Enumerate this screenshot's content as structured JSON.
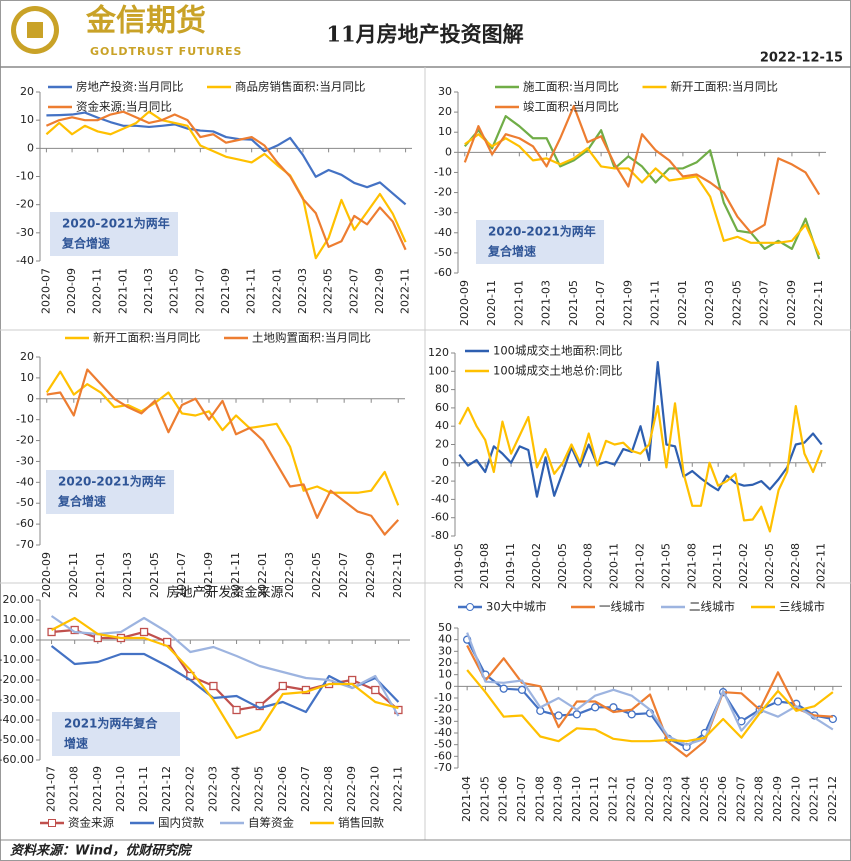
{
  "header": {
    "logo": "金信期货",
    "logo_en": "GOLDTRUST FUTURES",
    "title": "11月房地产投资图解",
    "date": "2022-12-15"
  },
  "footer": "资料来源：Wind，优财研究院",
  "chart_data": [
    {
      "type": "line",
      "legend": "top",
      "annotation": [
        "2020-2021为两年",
        "复合增速"
      ],
      "categories": [
        "2020-07",
        null,
        "2020-09",
        null,
        "2020-11",
        null,
        "2021-01",
        null,
        "2021-03",
        null,
        "2021-05",
        null,
        "2021-07",
        null,
        "2021-09",
        null,
        "2021-11",
        null,
        "2022-01",
        null,
        "2022-03",
        null,
        "2022-05",
        null,
        "2022-07",
        null,
        "2022-09",
        null,
        "2022-11"
      ],
      "ylim": [
        -40,
        20
      ],
      "yticks": [
        -40,
        -30,
        -20,
        -10,
        0,
        10,
        20
      ],
      "series": [
        {
          "name": "房地产投资:当月同比",
          "color": "#4472c4",
          "values": [
            11.7,
            11.8,
            12.0,
            12.7,
            10.9,
            9.3,
            8.0,
            8.0,
            7.6,
            8.0,
            8.5,
            7.0,
            6.3,
            6.0,
            4.0,
            3.3,
            3.1,
            -1,
            1,
            3.7,
            -2.4,
            -10.1,
            -7.7,
            -9.4,
            -12.3,
            -13.8,
            -12.1,
            -16,
            -19.9
          ]
        },
        {
          "name": "商品房销售面积:当月同比",
          "color": "#ffc000",
          "values": [
            5,
            9,
            5,
            8,
            6,
            5,
            7,
            9,
            13,
            10,
            9,
            8,
            1,
            -1,
            -3,
            -4,
            -5,
            -2,
            -6,
            -9.6,
            -17.7,
            -39,
            -31.8,
            -18.3,
            -28.9,
            -22.6,
            -16.2,
            -23.2,
            -33.3
          ]
        },
        {
          "name": "资金来源:当月同比",
          "color": "#ed7d31",
          "values": [
            8,
            10,
            11,
            10,
            10,
            12,
            13,
            11,
            9,
            10,
            12,
            10,
            4,
            5,
            2,
            3,
            4,
            1,
            -5,
            -10,
            -18,
            -23,
            -35,
            -33,
            -24,
            -27,
            -21,
            -26,
            -36
          ]
        }
      ]
    },
    {
      "type": "line",
      "legend": "top",
      "annotation": [
        "2020-2021为两年",
        "复合增速"
      ],
      "categories": [
        "2020-09",
        null,
        "2020-11",
        null,
        "2021-01",
        null,
        "2021-03",
        null,
        "2021-05",
        null,
        "2021-07",
        null,
        "2021-09",
        null,
        "2021-11",
        null,
        "2022-01",
        null,
        "2022-03",
        null,
        "2022-05",
        null,
        "2022-07",
        null,
        "2022-09",
        null,
        "2022-11"
      ],
      "ylim": [
        -60,
        30
      ],
      "yticks": [
        -60,
        -50,
        -40,
        -30,
        -20,
        -10,
        0,
        10,
        20,
        30
      ],
      "series": [
        {
          "name": "施工面积:当月同比",
          "color": "#70ad47",
          "values": [
            3,
            11,
            2,
            18,
            13,
            7,
            7,
            -7,
            -4,
            1,
            11,
            -8,
            -2,
            -7,
            -15,
            -8,
            -8,
            -5,
            1,
            -25,
            -39,
            -40,
            -48,
            -44,
            -48,
            -33,
            -53
          ]
        },
        {
          "name": "新开工面积:当月同比",
          "color": "#ffc000",
          "values": [
            4,
            9,
            3,
            7,
            3,
            -4,
            -3,
            -6,
            -3,
            2,
            -7,
            -8,
            -8,
            -15,
            -8,
            -14,
            -13,
            -12,
            -22,
            -44,
            -42,
            -45,
            -45,
            -45,
            -44,
            -36,
            -51
          ]
        },
        {
          "name": "竣工面积:当月同比",
          "color": "#ed7d31",
          "values": [
            -5,
            13,
            -1,
            9,
            7,
            3,
            -7,
            7,
            23,
            5,
            8,
            -6,
            -17,
            9,
            1,
            -4,
            -12,
            -11,
            -15,
            -20,
            -32,
            -40,
            -36,
            -3,
            -6,
            -10,
            -21
          ]
        }
      ]
    },
    {
      "type": "line",
      "legend": "top",
      "annotation": [
        "2020-2021为两年",
        "复合增速"
      ],
      "categories": [
        "2020-09",
        null,
        "2020-11",
        null,
        "2021-01",
        null,
        "2021-03",
        null,
        "2021-05",
        null,
        "2021-07",
        null,
        "2021-09",
        null,
        "2021-11",
        null,
        "2022-01",
        null,
        "2022-03",
        null,
        "2022-05",
        null,
        "2022-07",
        null,
        "2022-09",
        null,
        "2022-11"
      ],
      "ylim": [
        -70,
        20
      ],
      "yticks": [
        -70,
        -60,
        -50,
        -40,
        -30,
        -20,
        -10,
        0,
        10,
        20
      ],
      "series": [
        {
          "name": "新开工面积:当月同比",
          "color": "#ffc000",
          "values": [
            3,
            13,
            2,
            7,
            3,
            -4,
            -3,
            -6,
            -2,
            3,
            -7,
            -8,
            -6,
            -15,
            -8,
            -14,
            -13,
            -12,
            -23,
            -44,
            -42,
            -45,
            -45,
            -45,
            -44,
            -35,
            -51
          ]
        },
        {
          "name": "土地购置面积:当月同比",
          "color": "#ed7d31",
          "values": [
            2,
            3,
            -8,
            14,
            7,
            0,
            -4,
            -7,
            -1,
            -16,
            -3,
            0,
            -10,
            -1,
            -17,
            -14,
            -20,
            -31,
            -42,
            -41,
            -57,
            -44,
            -49,
            -54,
            -56,
            -65,
            -58
          ]
        }
      ]
    },
    {
      "type": "line",
      "legend": "top",
      "categories": [
        "2019-05",
        null,
        null,
        "2019-08",
        null,
        null,
        "2019-11",
        null,
        null,
        "2020-02",
        null,
        null,
        "2020-05",
        null,
        null,
        "2020-08",
        null,
        null,
        "2020-11",
        null,
        null,
        "2021-02",
        null,
        null,
        "2021-05",
        null,
        null,
        "2021-08",
        null,
        null,
        "2021-11",
        null,
        null,
        "2022-02",
        null,
        null,
        "2022-05",
        null,
        null,
        "2022-08",
        null,
        null,
        "2022-11"
      ],
      "ylim": [
        -80,
        120
      ],
      "yticks": [
        -80,
        -60,
        -40,
        -20,
        0,
        20,
        40,
        60,
        80,
        100,
        120
      ],
      "series": [
        {
          "name": "100城成交土地面积:同比",
          "color": "#2e5fb0",
          "values": [
            9,
            -3,
            3,
            -10,
            18,
            10,
            0,
            18,
            14,
            -37,
            6,
            -36,
            -10,
            17,
            -4,
            20,
            -2,
            1,
            -2,
            15,
            12,
            40,
            3,
            110,
            20,
            18,
            -15,
            -9,
            -17,
            -24,
            -30,
            -14,
            -22,
            -25,
            -24,
            -20,
            -29,
            -18,
            -5,
            20,
            22,
            32,
            20
          ]
        },
        {
          "name": "100城成交土地总价:同比",
          "color": "#ffc000",
          "values": [
            42,
            60,
            40,
            25,
            -10,
            45,
            10,
            30,
            50,
            -5,
            15,
            -12,
            0,
            20,
            0,
            32,
            -3,
            24,
            20,
            22,
            13,
            10,
            20,
            62,
            -5,
            65,
            -12,
            -47,
            -47,
            0,
            -25,
            -20,
            -12,
            -63,
            -62,
            -48,
            -75,
            -30,
            -10,
            62,
            10,
            -10,
            14
          ]
        }
      ]
    },
    {
      "type": "line",
      "legend": "bottom",
      "title": "房地产开发资金来源",
      "annotation": [
        "2021为两年复合",
        "增速"
      ],
      "categories": [
        "2021-07",
        "2021-08",
        "2021-09",
        "2021-10",
        "2021-11",
        "2021-12",
        "2022-02",
        "2022-03",
        "2022-04",
        "2022-05",
        "2022-06",
        "2022-07",
        "2022-08",
        "2022-09",
        "2022-10",
        "2022-11"
      ],
      "ylim": [
        -60,
        20
      ],
      "yticks": [
        {
          "value": -60,
          "label": "-60.00"
        },
        {
          "value": -50,
          "label": "-50.00"
        },
        {
          "value": -40,
          "label": "-40.00"
        },
        {
          "value": -30,
          "label": "-30.00"
        },
        {
          "value": -20,
          "label": "-20.00"
        },
        {
          "value": -10,
          "label": "-10.00"
        },
        {
          "value": 0,
          "label": "0.00"
        },
        {
          "value": 10,
          "label": "10.00"
        },
        {
          "value": 20,
          "label": "20.00"
        }
      ],
      "series": [
        {
          "name": "资金来源",
          "color": "#c0504d",
          "marker": "square",
          "values": [
            4,
            5,
            1,
            1,
            4,
            -1,
            -18,
            -23,
            -35,
            -33,
            -23,
            -25,
            -22,
            -20,
            -25,
            -35
          ]
        },
        {
          "name": "国内贷款",
          "color": "#4472c4",
          "values": [
            -3,
            -12,
            -11,
            -7,
            -7,
            -13,
            -20,
            -29,
            -28,
            -34,
            -31,
            -36,
            -18,
            -24,
            -19,
            -31
          ]
        },
        {
          "name": "自筹资金",
          "color": "#9db4e0",
          "values": [
            12,
            4,
            3,
            4,
            11,
            4,
            -6,
            -3.5,
            -8,
            -13,
            -16,
            -19,
            -20,
            -24,
            -18,
            -38
          ]
        },
        {
          "name": "销售回款",
          "color": "#ffc000",
          "values": [
            5,
            11,
            3,
            1,
            1,
            -3,
            -15,
            -30,
            -49,
            -45,
            -27,
            -26,
            -22,
            -22,
            -31,
            -34
          ]
        }
      ]
    },
    {
      "type": "line",
      "legend": "top",
      "categories": [
        "2021-04",
        "2021-05",
        "2021-06",
        "2021-07",
        "2021-08",
        "2021-09",
        "2021-10",
        "2021-11",
        "2021-12",
        "2022-01",
        "2022-02",
        "2022-03",
        "2022-04",
        "2022-05",
        "2022-06",
        "2022-07",
        "2022-08",
        "2022-09",
        "2022-10",
        "2022-11",
        "2022-12"
      ],
      "ylim": [
        -70,
        50
      ],
      "yticks": [
        -70,
        -60,
        -50,
        -40,
        -30,
        -20,
        -10,
        0,
        10,
        20,
        30,
        40,
        50
      ],
      "series": [
        {
          "name": "30大中城市",
          "color": "#4472c4",
          "marker": "circle",
          "values": [
            40,
            10,
            -2,
            -3,
            -21,
            -25,
            -24,
            -18,
            -18,
            -24,
            -23,
            -45,
            -52,
            -40,
            -5,
            -30,
            -20,
            -13,
            -15,
            -25,
            -28
          ]
        },
        {
          "name": "一线城市",
          "color": "#ed7d31",
          "values": [
            35,
            5,
            24,
            3,
            0,
            -35,
            -13,
            -13,
            -22,
            -20,
            -7,
            -48,
            -60,
            -47,
            -5,
            -6,
            -20,
            12,
            -19,
            -25,
            -26
          ]
        },
        {
          "name": "二线城市",
          "color": "#9db4e0",
          "values": [
            46,
            4,
            3,
            5,
            -18,
            -10,
            -20,
            -8,
            -3,
            -8,
            -20,
            -43,
            -50,
            -45,
            -4,
            -38,
            -20,
            -26,
            -17,
            -27,
            -37
          ]
        },
        {
          "name": "三线城市",
          "color": "#ffc000",
          "values": [
            14,
            -5,
            -26,
            -25,
            -43,
            -47,
            -36,
            -37,
            -45,
            -47,
            -47,
            -46,
            -47,
            -44,
            -28,
            -44,
            -23,
            -4,
            -21,
            -17,
            -5
          ]
        }
      ]
    }
  ]
}
